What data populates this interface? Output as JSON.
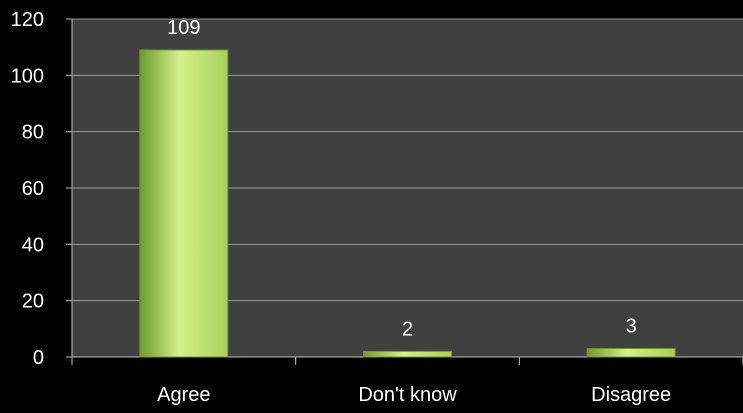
{
  "chart_data": {
    "type": "bar",
    "categories": [
      "Agree",
      "Don't know",
      "Disagree"
    ],
    "values": [
      109,
      2,
      3
    ],
    "data_labels": [
      "109",
      "2",
      "3"
    ],
    "ylim": [
      0,
      120
    ],
    "yticks": [
      "0",
      "20",
      "40",
      "60",
      "80",
      "100",
      "120"
    ],
    "grid": true,
    "legend": "none",
    "colors": {
      "page_background": "#000000",
      "plot_background": "#404040",
      "gridline": "#9a9a9a",
      "axis": "#bfbfbf",
      "text": "#ffffff",
      "bar_fill": "#a6d05a",
      "bar_light": "#d4f08c",
      "bar_dark": "#6f9a2a"
    }
  }
}
